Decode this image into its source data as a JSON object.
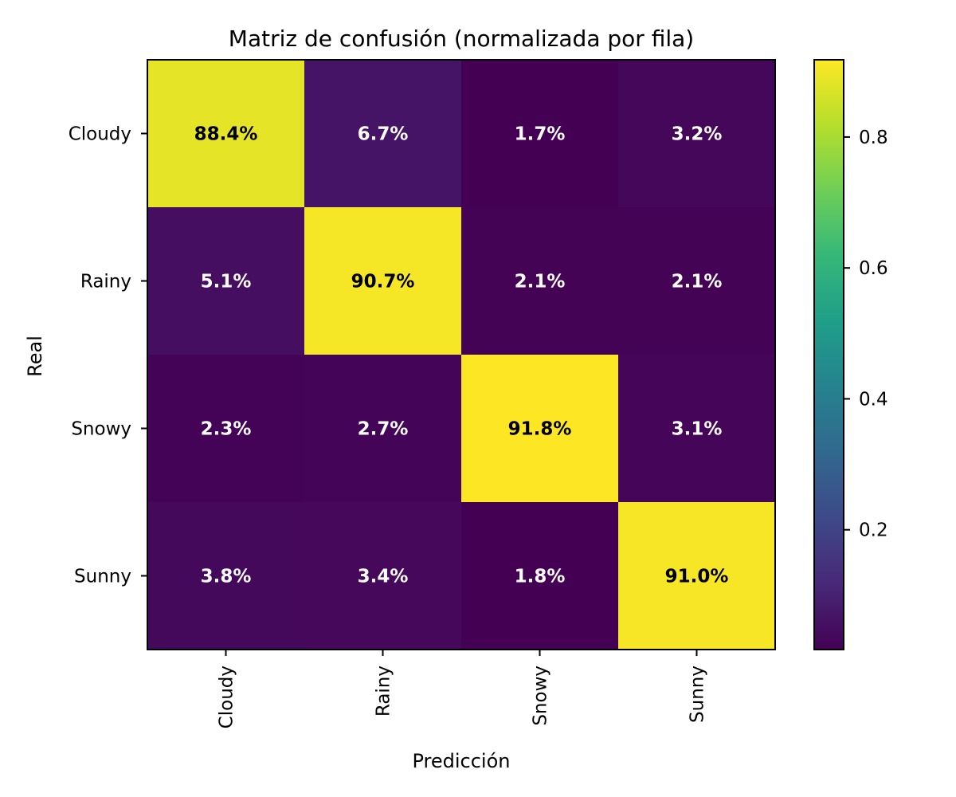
{
  "chart_data": {
    "type": "heatmap",
    "title": "Matriz de confusión (normalizada por fila)",
    "xlabel": "Predicción",
    "ylabel": "Real",
    "x_categories": [
      "Cloudy",
      "Rainy",
      "Snowy",
      "Sunny"
    ],
    "y_categories": [
      "Cloudy",
      "Rainy",
      "Snowy",
      "Sunny"
    ],
    "values": [
      [
        0.884,
        0.067,
        0.017,
        0.032
      ],
      [
        0.051,
        0.907,
        0.021,
        0.021
      ],
      [
        0.023,
        0.027,
        0.918,
        0.031
      ],
      [
        0.038,
        0.034,
        0.018,
        0.91
      ]
    ],
    "cell_labels": [
      [
        "88.4%",
        "6.7%",
        "1.7%",
        "3.2%"
      ],
      [
        "5.1%",
        "90.7%",
        "2.1%",
        "2.1%"
      ],
      [
        "2.3%",
        "2.7%",
        "91.8%",
        "3.1%"
      ],
      [
        "3.8%",
        "3.4%",
        "1.8%",
        "91.0%"
      ]
    ],
    "colormap": "viridis",
    "colorbar": {
      "range": [
        0.017,
        0.918
      ],
      "ticks": [
        0.2,
        0.4,
        0.6,
        0.8
      ],
      "tick_labels": [
        "0.2",
        "0.4",
        "0.6",
        "0.8"
      ]
    }
  }
}
